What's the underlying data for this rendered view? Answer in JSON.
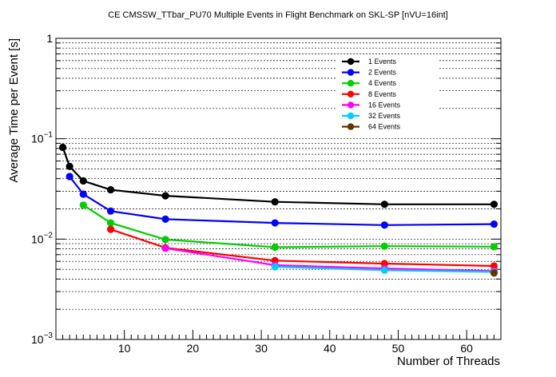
{
  "chart_data": {
    "type": "line",
    "title": "CE CMSSW_TTbar_PU70 Multiple Events in Flight Benchmark on SKL-SP [nVU=16int]",
    "xlabel": "Number of Threads",
    "ylabel": "Average Time per Event [s]",
    "xlim": [
      0,
      65
    ],
    "ylim": [
      0.001,
      1
    ],
    "yscale": "log",
    "x_ticks": [
      "10",
      "20",
      "30",
      "40",
      "50",
      "60"
    ],
    "y_ticks": [
      {
        "base": "10",
        "exp": "−3"
      },
      {
        "base": "10",
        "exp": "−2"
      },
      {
        "base": "10",
        "exp": "−1"
      },
      {
        "base": "1",
        "exp": ""
      }
    ],
    "grid": "y-dotted",
    "legend_position": "top-right",
    "series": [
      {
        "name": "1 Events",
        "color": "#000000",
        "x": [
          1,
          2,
          4,
          8,
          16,
          32,
          48,
          64
        ],
        "y": [
          0.082,
          0.053,
          0.038,
          0.031,
          0.027,
          0.0235,
          0.0222,
          0.0222
        ]
      },
      {
        "name": "2 Events",
        "color": "#0000ff",
        "x": [
          2,
          4,
          8,
          16,
          32,
          48,
          64
        ],
        "y": [
          0.042,
          0.028,
          0.019,
          0.0158,
          0.0145,
          0.0138,
          0.0141
        ]
      },
      {
        "name": "4 Events",
        "color": "#00cc00",
        "x": [
          4,
          8,
          16,
          32,
          48,
          64
        ],
        "y": [
          0.0218,
          0.0145,
          0.0099,
          0.0083,
          0.0085,
          0.0084
        ]
      },
      {
        "name": "8 Events",
        "color": "#ff0000",
        "x": [
          8,
          16,
          32,
          48,
          64
        ],
        "y": [
          0.0125,
          0.0082,
          0.0061,
          0.0057,
          0.0054
        ]
      },
      {
        "name": "16 Events",
        "color": "#ff00ff",
        "x": [
          16,
          32,
          48,
          64
        ],
        "y": [
          0.0081,
          0.0055,
          0.0051,
          0.0048
        ]
      },
      {
        "name": "32 Events",
        "color": "#00ccff",
        "x": [
          32,
          48,
          64
        ],
        "y": [
          0.0053,
          0.0049,
          0.0047
        ]
      },
      {
        "name": "64 Events",
        "color": "#663300",
        "x": [
          64
        ],
        "y": [
          0.0046
        ]
      }
    ]
  }
}
